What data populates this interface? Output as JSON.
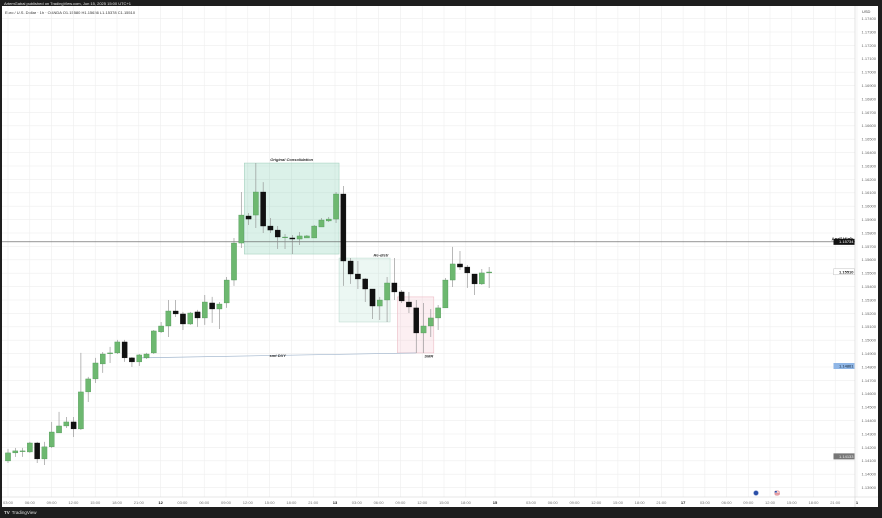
{
  "publisher_line": "ArtemGabai published on TradingView.com, Jun 15, 2025 15:00 UTC+1",
  "legend": "Euro / U.S. Dollar · 1h · OANDA  O1.15580  H1.15636  L1.15378  C1.15510",
  "footer": {
    "logo_mark": "TV",
    "brand": "TradingView"
  },
  "colors": {
    "up": "#6db870",
    "down": "#111111",
    "grid": "#eeeeee",
    "consolidation": "#5cc09a",
    "smr": "#f2b8c2",
    "smt_line": "#9fb4cc",
    "last_price_badge": "#8fb6e6"
  },
  "chart_data": {
    "type": "candlestick",
    "symbol": "Euro / U.S. Dollar",
    "interval": "1h",
    "currency_label": "USD",
    "start_time": "2025-06-11 03:00",
    "candles_ohlc": [
      [
        1.14099,
        1.14189,
        1.14084,
        1.14159
      ],
      [
        1.14159,
        1.14196,
        1.14129,
        1.14174
      ],
      [
        1.14174,
        1.14196,
        1.14129,
        1.14174
      ],
      [
        1.14166,
        1.14241,
        1.14159,
        1.14233
      ],
      [
        1.14233,
        1.14241,
        1.14084,
        1.14114
      ],
      [
        1.14114,
        1.14241,
        1.14069,
        1.14204
      ],
      [
        1.14204,
        1.1439,
        1.14196,
        1.14315
      ],
      [
        1.14308,
        1.14465,
        1.14308,
        1.1436
      ],
      [
        1.1436,
        1.14427,
        1.14345,
        1.1439
      ],
      [
        1.1439,
        1.14427,
        1.14278,
        1.14338
      ],
      [
        1.14338,
        1.14905,
        1.1433,
        1.14614
      ],
      [
        1.14614,
        1.14726,
        1.14539,
        1.14711
      ],
      [
        1.14711,
        1.14868,
        1.14681,
        1.1483
      ],
      [
        1.14823,
        1.14912,
        1.14756,
        1.14897
      ],
      [
        1.14905,
        1.1495,
        1.1483,
        1.14905
      ],
      [
        1.14905,
        1.15002,
        1.14897,
        1.14987
      ],
      [
        1.14987,
        1.15002,
        1.14838,
        1.14868
      ],
      [
        1.14868,
        1.14875,
        1.148,
        1.14838
      ],
      [
        1.14838,
        1.14897,
        1.14808,
        1.1489
      ],
      [
        1.14868,
        1.14905,
        1.1486,
        1.14897
      ],
      [
        1.14905,
        1.15076,
        1.14897,
        1.15069
      ],
      [
        1.15062,
        1.15136,
        1.15054,
        1.15106
      ],
      [
        1.15106,
        1.153,
        1.15024,
        1.15218
      ],
      [
        1.15218,
        1.153,
        1.15173,
        1.15196
      ],
      [
        1.15196,
        1.15211,
        1.15076,
        1.15121
      ],
      [
        1.15121,
        1.15211,
        1.15114,
        1.15203
      ],
      [
        1.15211,
        1.15226,
        1.15099,
        1.15166
      ],
      [
        1.15166,
        1.15337,
        1.15114,
        1.15285
      ],
      [
        1.15278,
        1.15323,
        1.15129,
        1.15233
      ],
      [
        1.15233,
        1.15285,
        1.15084,
        1.1527
      ],
      [
        1.15278,
        1.15472,
        1.15241,
        1.15449
      ],
      [
        1.15449,
        1.15763,
        1.15405,
        1.15725
      ],
      [
        1.15725,
        1.16106,
        1.15688,
        1.15934
      ],
      [
        1.15927,
        1.15949,
        1.1586,
        1.15904
      ],
      [
        1.15934,
        1.16322,
        1.15837,
        1.16106
      ],
      [
        1.16106,
        1.1618,
        1.158,
        1.15852
      ],
      [
        1.15852,
        1.15912,
        1.158,
        1.15822
      ],
      [
        1.15822,
        1.15852,
        1.15681,
        1.1577
      ],
      [
        1.1577,
        1.15793,
        1.15681,
        1.1577
      ],
      [
        1.15763,
        1.15785,
        1.15643,
        1.15755
      ],
      [
        1.15755,
        1.15807,
        1.1571,
        1.15778
      ],
      [
        1.15763,
        1.15785,
        1.15763,
        1.15778
      ],
      [
        1.15763,
        1.1586,
        1.15763,
        1.15852
      ],
      [
        1.15845,
        1.15912,
        1.15845,
        1.15897
      ],
      [
        1.1589,
        1.15919,
        1.15882,
        1.15904
      ],
      [
        1.15904,
        1.16106,
        1.15875,
        1.16091
      ],
      [
        1.16091,
        1.16151,
        1.15405,
        1.15591
      ],
      [
        1.15591,
        1.15613,
        1.1542,
        1.15494
      ],
      [
        1.15494,
        1.15591,
        1.15382,
        1.15457
      ],
      [
        1.15457,
        1.15464,
        1.15285,
        1.15382
      ],
      [
        1.15382,
        1.15382,
        1.15158,
        1.15255
      ],
      [
        1.15255,
        1.15323,
        1.15151,
        1.153
      ],
      [
        1.153,
        1.15472,
        1.15136,
        1.15427
      ],
      [
        1.15427,
        1.15613,
        1.153,
        1.1536
      ],
      [
        1.1536,
        1.15375,
        1.15278,
        1.15293
      ],
      [
        1.15285,
        1.1536,
        1.15203,
        1.15248
      ],
      [
        1.15241,
        1.153,
        1.14905,
        1.15054
      ],
      [
        1.15054,
        1.15278,
        1.14905,
        1.15106
      ],
      [
        1.15106,
        1.15233,
        1.15024,
        1.15166
      ],
      [
        1.15166,
        1.15263,
        1.15076,
        1.15241
      ],
      [
        1.15241,
        1.15464,
        1.15241,
        1.15449
      ],
      [
        1.15449,
        1.15696,
        1.15397,
        1.15569
      ],
      [
        1.15569,
        1.15666,
        1.15524,
        1.15546
      ],
      [
        1.15546,
        1.15561,
        1.1539,
        1.15502
      ],
      [
        1.15494,
        1.15494,
        1.15337,
        1.1542
      ],
      [
        1.1542,
        1.15531,
        1.15412,
        1.15502
      ],
      [
        1.15502,
        1.15546,
        1.1539,
        1.15509
      ]
    ],
    "y_ticks": [
      "1.17400",
      "1.17300",
      "1.17200",
      "1.17100",
      "1.17000",
      "1.16900",
      "1.16800",
      "1.16700",
      "1.16600",
      "1.16500",
      "1.16400",
      "1.16300",
      "1.16200",
      "1.16100",
      "1.16000",
      "1.15900",
      "1.15800",
      "1.15700",
      "1.15600",
      "1.15500",
      "1.15400",
      "1.15300",
      "1.15200",
      "1.15100",
      "1.15000",
      "1.14900",
      "1.14800",
      "1.14700",
      "1.14600",
      "1.14500",
      "1.14400",
      "1.14300",
      "1.14200",
      "1.14100",
      "1.14000",
      "1.13900"
    ],
    "x_ticks": [
      "03:00",
      "06:00",
      "09:00",
      "12:00",
      "15:00",
      "18:00",
      "21:00",
      "12",
      "03:00",
      "06:00",
      "09:00",
      "12:00",
      "15:00",
      "18:00",
      "21:00",
      "13",
      "03:00",
      "06:00",
      "09:00",
      "12:00",
      "15:00",
      "18:00",
      "15",
      "03:00",
      "06:00",
      "09:00",
      "12:00",
      "15:00",
      "18:00",
      "21:00",
      "17",
      "03:00",
      "06:00",
      "09:00",
      "12:00",
      "15:00",
      "18:00",
      "21:00",
      "1"
    ],
    "price_badges": [
      {
        "label": "1.15734",
        "style": "dark"
      },
      {
        "label": "1.15510",
        "style": "current"
      },
      {
        "label": "1.14861",
        "style": "blue"
      },
      {
        "label": "1.14133",
        "style": "gray"
      }
    ],
    "annotations": {
      "april_high": {
        "label": "April High",
        "price": 1.15734
      },
      "consolidation": {
        "label": "Original Consolidation",
        "from": "2025-06-12 11:00",
        "to": "2025-06-13 00:00",
        "top": 1.16322,
        "bottom": 1.15643
      },
      "redistribution": {
        "label": "Re-distr",
        "from": "2025-06-13 00:00",
        "to": "2025-06-13 07:00",
        "top": 1.15613,
        "bottom": 1.15136
      },
      "smr": {
        "label": "SMR",
        "from": "2025-06-13 08:00",
        "to": "2025-06-13 13:00",
        "top": 1.15323,
        "bottom": 1.14905
      },
      "smt": {
        "label": "smt DXY",
        "from": "2025-06-11 21:00",
        "from_price": 1.14868,
        "to": "2025-06-13 11:00",
        "to_price": 1.14905
      }
    },
    "event_icons": [
      "eu-flag-icon",
      "us-flag-icon"
    ]
  }
}
